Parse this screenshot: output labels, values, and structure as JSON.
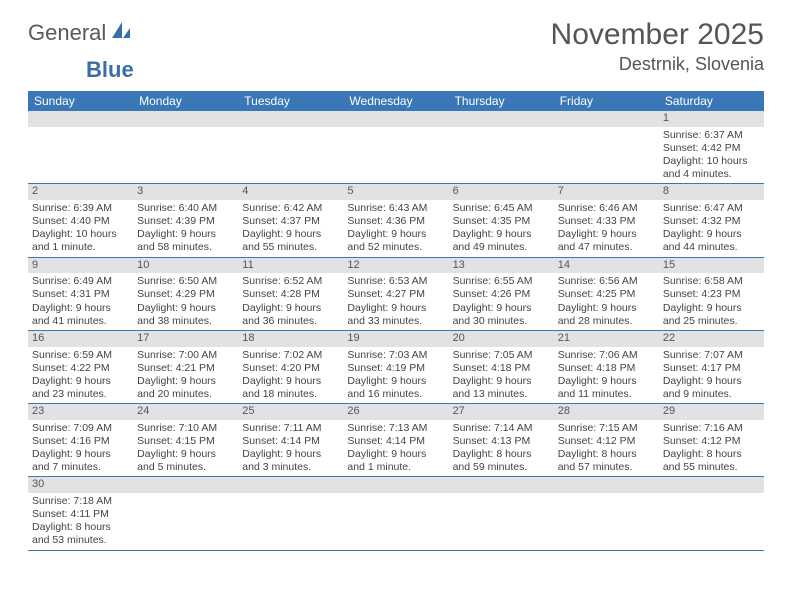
{
  "colors": {
    "header_bg": "#3a77b6",
    "header_text": "#ffffff",
    "daynum_bg": "#e1e2e4",
    "week_divider": "#3a77b6",
    "body_text": "#444444",
    "title_text": "#555555",
    "logo_gray": "#58595b",
    "logo_blue": "#3b6ea5",
    "page_bg": "#ffffff"
  },
  "typography": {
    "month_title_size_pt": 22,
    "location_size_pt": 13,
    "weekday_size_pt": 9,
    "daynum_size_pt": 8,
    "body_size_pt": 8,
    "logo_size_pt": 16
  },
  "logo": {
    "part1": "General",
    "part2": "Blue"
  },
  "title": "November 2025",
  "location": "Destrnik, Slovenia",
  "weekdays": [
    "Sunday",
    "Monday",
    "Tuesday",
    "Wednesday",
    "Thursday",
    "Friday",
    "Saturday"
  ],
  "weeks": [
    [
      null,
      null,
      null,
      null,
      null,
      null,
      {
        "n": "1",
        "sr": "Sunrise: 6:37 AM",
        "ss": "Sunset: 4:42 PM",
        "d1": "Daylight: 10 hours",
        "d2": "and 4 minutes."
      }
    ],
    [
      {
        "n": "2",
        "sr": "Sunrise: 6:39 AM",
        "ss": "Sunset: 4:40 PM",
        "d1": "Daylight: 10 hours",
        "d2": "and 1 minute."
      },
      {
        "n": "3",
        "sr": "Sunrise: 6:40 AM",
        "ss": "Sunset: 4:39 PM",
        "d1": "Daylight: 9 hours",
        "d2": "and 58 minutes."
      },
      {
        "n": "4",
        "sr": "Sunrise: 6:42 AM",
        "ss": "Sunset: 4:37 PM",
        "d1": "Daylight: 9 hours",
        "d2": "and 55 minutes."
      },
      {
        "n": "5",
        "sr": "Sunrise: 6:43 AM",
        "ss": "Sunset: 4:36 PM",
        "d1": "Daylight: 9 hours",
        "d2": "and 52 minutes."
      },
      {
        "n": "6",
        "sr": "Sunrise: 6:45 AM",
        "ss": "Sunset: 4:35 PM",
        "d1": "Daylight: 9 hours",
        "d2": "and 49 minutes."
      },
      {
        "n": "7",
        "sr": "Sunrise: 6:46 AM",
        "ss": "Sunset: 4:33 PM",
        "d1": "Daylight: 9 hours",
        "d2": "and 47 minutes."
      },
      {
        "n": "8",
        "sr": "Sunrise: 6:47 AM",
        "ss": "Sunset: 4:32 PM",
        "d1": "Daylight: 9 hours",
        "d2": "and 44 minutes."
      }
    ],
    [
      {
        "n": "9",
        "sr": "Sunrise: 6:49 AM",
        "ss": "Sunset: 4:31 PM",
        "d1": "Daylight: 9 hours",
        "d2": "and 41 minutes."
      },
      {
        "n": "10",
        "sr": "Sunrise: 6:50 AM",
        "ss": "Sunset: 4:29 PM",
        "d1": "Daylight: 9 hours",
        "d2": "and 38 minutes."
      },
      {
        "n": "11",
        "sr": "Sunrise: 6:52 AM",
        "ss": "Sunset: 4:28 PM",
        "d1": "Daylight: 9 hours",
        "d2": "and 36 minutes."
      },
      {
        "n": "12",
        "sr": "Sunrise: 6:53 AM",
        "ss": "Sunset: 4:27 PM",
        "d1": "Daylight: 9 hours",
        "d2": "and 33 minutes."
      },
      {
        "n": "13",
        "sr": "Sunrise: 6:55 AM",
        "ss": "Sunset: 4:26 PM",
        "d1": "Daylight: 9 hours",
        "d2": "and 30 minutes."
      },
      {
        "n": "14",
        "sr": "Sunrise: 6:56 AM",
        "ss": "Sunset: 4:25 PM",
        "d1": "Daylight: 9 hours",
        "d2": "and 28 minutes."
      },
      {
        "n": "15",
        "sr": "Sunrise: 6:58 AM",
        "ss": "Sunset: 4:23 PM",
        "d1": "Daylight: 9 hours",
        "d2": "and 25 minutes."
      }
    ],
    [
      {
        "n": "16",
        "sr": "Sunrise: 6:59 AM",
        "ss": "Sunset: 4:22 PM",
        "d1": "Daylight: 9 hours",
        "d2": "and 23 minutes."
      },
      {
        "n": "17",
        "sr": "Sunrise: 7:00 AM",
        "ss": "Sunset: 4:21 PM",
        "d1": "Daylight: 9 hours",
        "d2": "and 20 minutes."
      },
      {
        "n": "18",
        "sr": "Sunrise: 7:02 AM",
        "ss": "Sunset: 4:20 PM",
        "d1": "Daylight: 9 hours",
        "d2": "and 18 minutes."
      },
      {
        "n": "19",
        "sr": "Sunrise: 7:03 AM",
        "ss": "Sunset: 4:19 PM",
        "d1": "Daylight: 9 hours",
        "d2": "and 16 minutes."
      },
      {
        "n": "20",
        "sr": "Sunrise: 7:05 AM",
        "ss": "Sunset: 4:18 PM",
        "d1": "Daylight: 9 hours",
        "d2": "and 13 minutes."
      },
      {
        "n": "21",
        "sr": "Sunrise: 7:06 AM",
        "ss": "Sunset: 4:18 PM",
        "d1": "Daylight: 9 hours",
        "d2": "and 11 minutes."
      },
      {
        "n": "22",
        "sr": "Sunrise: 7:07 AM",
        "ss": "Sunset: 4:17 PM",
        "d1": "Daylight: 9 hours",
        "d2": "and 9 minutes."
      }
    ],
    [
      {
        "n": "23",
        "sr": "Sunrise: 7:09 AM",
        "ss": "Sunset: 4:16 PM",
        "d1": "Daylight: 9 hours",
        "d2": "and 7 minutes."
      },
      {
        "n": "24",
        "sr": "Sunrise: 7:10 AM",
        "ss": "Sunset: 4:15 PM",
        "d1": "Daylight: 9 hours",
        "d2": "and 5 minutes."
      },
      {
        "n": "25",
        "sr": "Sunrise: 7:11 AM",
        "ss": "Sunset: 4:14 PM",
        "d1": "Daylight: 9 hours",
        "d2": "and 3 minutes."
      },
      {
        "n": "26",
        "sr": "Sunrise: 7:13 AM",
        "ss": "Sunset: 4:14 PM",
        "d1": "Daylight: 9 hours",
        "d2": "and 1 minute."
      },
      {
        "n": "27",
        "sr": "Sunrise: 7:14 AM",
        "ss": "Sunset: 4:13 PM",
        "d1": "Daylight: 8 hours",
        "d2": "and 59 minutes."
      },
      {
        "n": "28",
        "sr": "Sunrise: 7:15 AM",
        "ss": "Sunset: 4:12 PM",
        "d1": "Daylight: 8 hours",
        "d2": "and 57 minutes."
      },
      {
        "n": "29",
        "sr": "Sunrise: 7:16 AM",
        "ss": "Sunset: 4:12 PM",
        "d1": "Daylight: 8 hours",
        "d2": "and 55 minutes."
      }
    ],
    [
      {
        "n": "30",
        "sr": "Sunrise: 7:18 AM",
        "ss": "Sunset: 4:11 PM",
        "d1": "Daylight: 8 hours",
        "d2": "and 53 minutes."
      },
      null,
      null,
      null,
      null,
      null,
      null
    ]
  ]
}
